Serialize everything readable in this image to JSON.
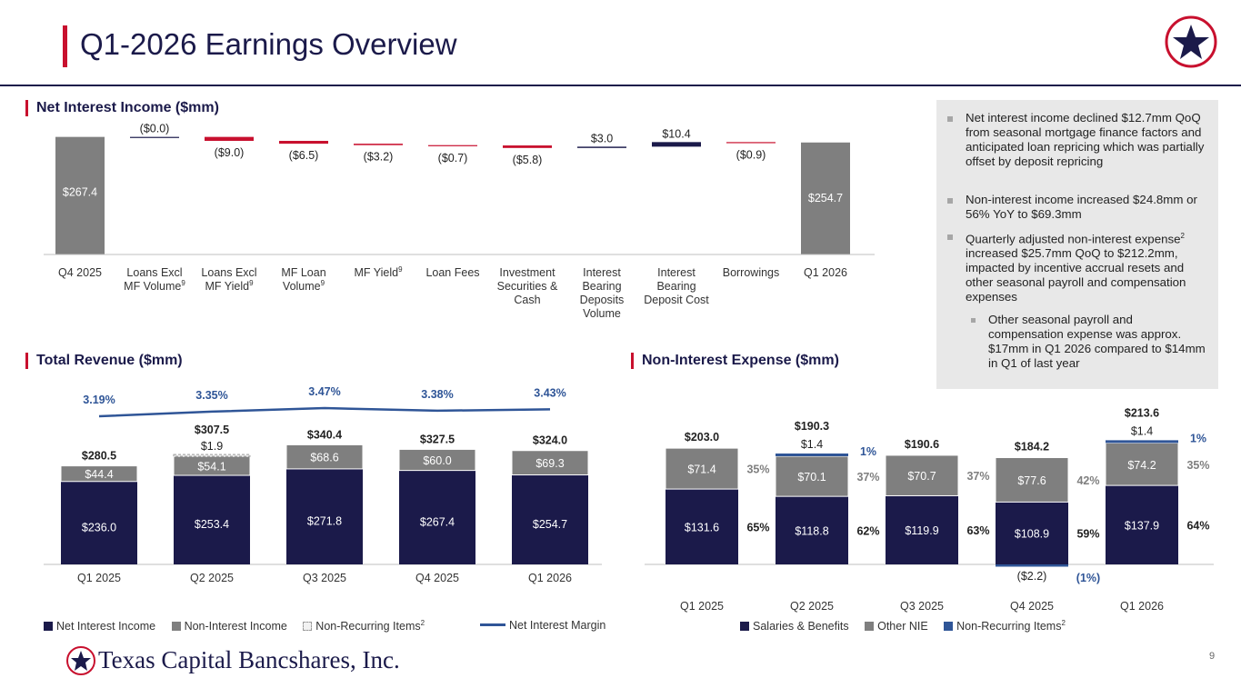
{
  "header": {
    "title": "Q1-2026 Earnings Overview"
  },
  "colors": {
    "navy": "#1b1a4a",
    "red": "#c8102e",
    "gray": "#7f7f7f",
    "blue": "#2f5597",
    "lightgray": "#d9d9d9"
  },
  "sections": {
    "nii": "Net Interest Income ($mm)",
    "revenue": "Total Revenue ($mm)",
    "expense": "Non-Interest Expense ($mm)"
  },
  "notes": {
    "b1": "Net interest income declined $12.7mm QoQ from seasonal mortgage finance factors and anticipated loan repricing which was partially offset by deposit repricing",
    "b2": "Non-interest income increased $24.8mm or 56% YoY to $69.3mm",
    "b3_a": "Quarterly adjusted non-interest expense",
    "b3_sup": "2",
    "b3_b": " increased $25.7mm QoQ to $212.2mm, impacted by incentive accrual resets and other seasonal payroll and compensation expenses",
    "b4": "Other seasonal payroll and compensation expense was approx. $17mm in Q1 2026 compared to $14mm in Q1 of last year"
  },
  "footer": {
    "brand": "Texas Capital Bancshares, Inc.",
    "page": "9"
  },
  "chart_data": [
    {
      "type": "bar",
      "subtype": "waterfall",
      "title": "Net Interest Income ($mm)",
      "categories": [
        {
          "lines": [
            "Q4 2025"
          ],
          "sup": ""
        },
        {
          "lines": [
            "Loans Excl",
            "MF Volume"
          ],
          "sup": "9"
        },
        {
          "lines": [
            "Loans Excl",
            "MF Yield"
          ],
          "sup": "9"
        },
        {
          "lines": [
            "MF Loan",
            "Volume"
          ],
          "sup": "9"
        },
        {
          "lines": [
            "MF Yield"
          ],
          "sup": "9"
        },
        {
          "lines": [
            "Loan Fees"
          ],
          "sup": ""
        },
        {
          "lines": [
            "Investment",
            "Securities &",
            "Cash"
          ],
          "sup": ""
        },
        {
          "lines": [
            "Interest",
            "Bearing",
            "Deposits",
            "Volume"
          ],
          "sup": ""
        },
        {
          "lines": [
            "Interest",
            "Bearing",
            "Deposit Cost"
          ],
          "sup": ""
        },
        {
          "lines": [
            "Borrowings"
          ],
          "sup": ""
        },
        {
          "lines": [
            "Q1 2026"
          ],
          "sup": ""
        }
      ],
      "values": [
        267.4,
        -0.0,
        -9.0,
        -6.5,
        -3.2,
        -0.7,
        -5.8,
        3.0,
        10.4,
        -0.9,
        254.7
      ],
      "labels": [
        "$267.4",
        "($0.0)",
        "($9.0)",
        "($6.5)",
        "($3.2)",
        "($0.7)",
        "($5.8)",
        "$3.0",
        "$10.4",
        "($0.9)",
        "$254.7"
      ],
      "kinds": [
        "total",
        "delta",
        "delta",
        "delta",
        "delta",
        "delta",
        "delta",
        "delta",
        "delta",
        "delta",
        "total"
      ]
    },
    {
      "type": "bar",
      "subtype": "stacked+line",
      "title": "Total Revenue ($mm)",
      "categories": [
        "Q1 2025",
        "Q2 2025",
        "Q3 2025",
        "Q4 2025",
        "Q1 2026"
      ],
      "series": [
        {
          "name": "Net Interest Income",
          "values": [
            236.0,
            253.4,
            271.8,
            267.4,
            254.7
          ],
          "labels": [
            "$236.0",
            "$253.4",
            "$271.8",
            "$267.4",
            "$254.7"
          ]
        },
        {
          "name": "Non-Interest Income",
          "values": [
            44.4,
            54.1,
            68.6,
            60.0,
            69.3
          ],
          "labels": [
            "$44.4",
            "$54.1",
            "$68.6",
            "$60.0",
            "$69.3"
          ]
        },
        {
          "name": "Non-Recurring Items",
          "values": [
            0,
            1.9,
            0,
            0,
            0
          ],
          "labels": [
            "",
            "$1.9",
            "",
            "",
            ""
          ]
        }
      ],
      "totals": [
        "$280.5",
        "$307.5",
        "$340.4",
        "$327.5",
        "$324.0"
      ],
      "margin": {
        "name": "Net Interest Margin",
        "values": [
          3.19,
          3.35,
          3.47,
          3.38,
          3.43
        ],
        "labels": [
          "3.19%",
          "3.35%",
          "3.47%",
          "3.38%",
          "3.43%"
        ]
      },
      "legend": [
        {
          "label": "Net Interest Income",
          "sup": ""
        },
        {
          "label": "Non-Interest Income",
          "sup": ""
        },
        {
          "label": "Non-Recurring Items",
          "sup": "2"
        },
        {
          "label": "Net Interest Margin",
          "sup": ""
        }
      ]
    },
    {
      "type": "bar",
      "subtype": "stacked",
      "title": "Non-Interest Expense ($mm)",
      "categories": [
        "Q1 2025",
        "Q2 2025",
        "Q3 2025",
        "Q4 2025",
        "Q1 2026"
      ],
      "series": [
        {
          "name": "Salaries & Benefits",
          "values": [
            131.6,
            118.8,
            119.9,
            108.9,
            137.9
          ],
          "labels": [
            "$131.6",
            "$118.8",
            "$119.9",
            "$108.9",
            "$137.9"
          ],
          "pcts": [
            "65%",
            "62%",
            "63%",
            "59%",
            "64%"
          ]
        },
        {
          "name": "Other NIE",
          "values": [
            71.4,
            70.1,
            70.7,
            77.6,
            74.2
          ],
          "labels": [
            "$71.4",
            "$70.1",
            "$70.7",
            "$77.6",
            "$74.2"
          ],
          "pcts": [
            "35%",
            "37%",
            "37%",
            "42%",
            "35%"
          ]
        },
        {
          "name": "Non-Recurring Items",
          "values": [
            0,
            1.4,
            0,
            -2.2,
            1.4
          ],
          "labels": [
            "",
            "$1.4",
            "",
            "($2.2)",
            "$1.4"
          ],
          "pcts": [
            "",
            "1%",
            "",
            "(1%)",
            "1%"
          ]
        }
      ],
      "totals": [
        "$203.0",
        "$190.3",
        "$190.6",
        "$184.2",
        "$213.6"
      ],
      "legend": [
        {
          "label": "Salaries & Benefits",
          "sup": ""
        },
        {
          "label": "Other NIE",
          "sup": ""
        },
        {
          "label": "Non-Recurring Items",
          "sup": "2"
        }
      ]
    }
  ]
}
